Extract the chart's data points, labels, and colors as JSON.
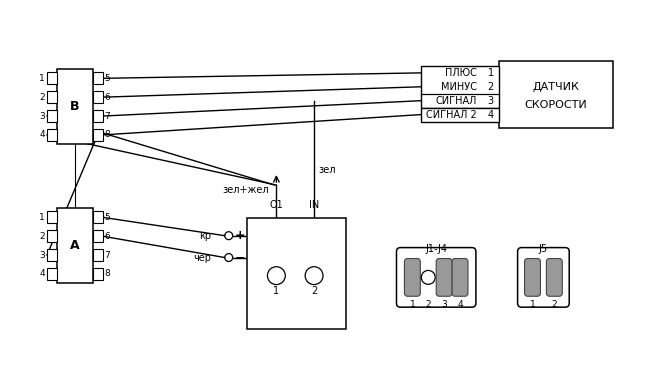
{
  "line_color": "#000000",
  "gray_color": "#888888",
  "connector_fill": "#999999",
  "sensor_label1": "ДАТЧИК",
  "sensor_label2": "СКОРОСТИ",
  "label_B": "B",
  "label_A": "A",
  "label_zel_zhel": "зел+жел",
  "label_kp": "кр",
  "label_cher": "чер",
  "label_O1": "O1",
  "label_IN": "IN",
  "label_zel": "зел",
  "label_plus": "+",
  "label_minus": "−",
  "label_J1J4": "J1-J4",
  "label_J5": "J5",
  "sensor_pins": [
    "ПЛЮС",
    "МИНУС",
    "СИГНАЛ",
    "СИГНАЛ 2"
  ],
  "sensor_pin_nums": [
    "1",
    "2",
    "3",
    "4"
  ]
}
